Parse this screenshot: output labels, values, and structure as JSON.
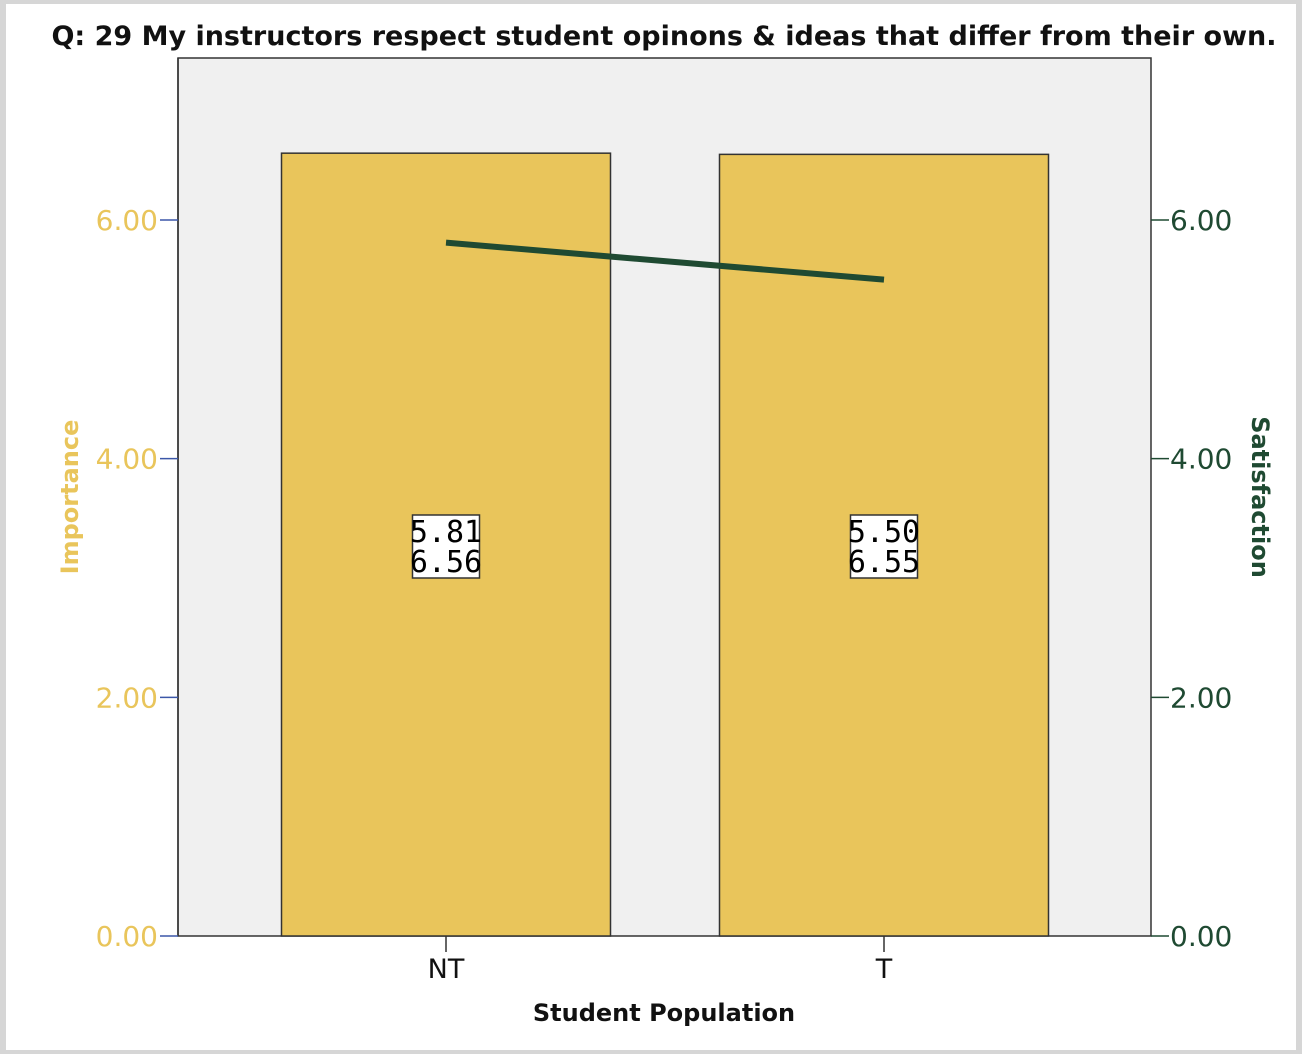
{
  "chart_data": {
    "type": "bar",
    "title": "Q: 29 My instructors respect student opinons & ideas that differ from their own.",
    "categories": [
      "NT",
      "T"
    ],
    "xlabel": "Student Population",
    "ylabel": "Importance",
    "y2label": "Satisfaction",
    "ylim": [
      0,
      7
    ],
    "y2lim": [
      0,
      7
    ],
    "yticks": [
      "0.00",
      "2.00",
      "4.00",
      "6.00"
    ],
    "y2ticks": [
      "0.00",
      "2.00",
      "4.00",
      "6.00"
    ],
    "grid": false,
    "series": [
      {
        "type": "bar",
        "axis": "left",
        "values": [
          6.56,
          6.55
        ],
        "color": "#e9c55b"
      },
      {
        "type": "line",
        "axis": "right",
        "values": [
          5.81,
          5.5
        ],
        "color": "#1f4a32"
      }
    ],
    "data_labels": [
      [
        "5.81",
        "6.56"
      ],
      [
        "5.50",
        "6.55"
      ]
    ],
    "colors": {
      "left_axis_text": "#e9c55b",
      "right_axis_text": "#1f4a32",
      "plot_background": "#f0f0f0"
    }
  }
}
